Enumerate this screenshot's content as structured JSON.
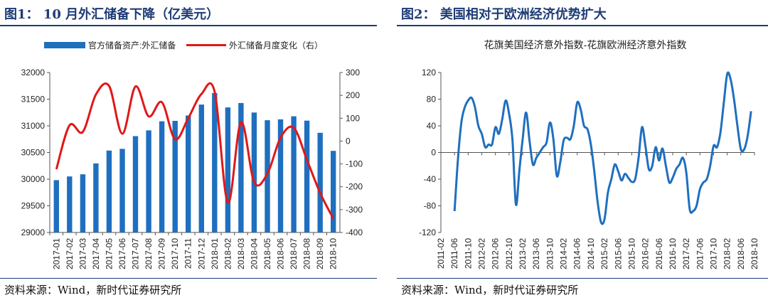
{
  "figure1": {
    "title": "图1：  10 月外汇储备下降（亿美元）",
    "source": "资料来源：Wind，新时代证券研究所",
    "chart_data": {
      "type": "bar+line",
      "categories": [
        "2017-01",
        "2017-02",
        "2017-03",
        "2017-04",
        "2017-05",
        "2017-06",
        "2017-07",
        "2017-08",
        "2017-09",
        "2017-10",
        "2017-11",
        "2017-12",
        "2018-01",
        "2018-02",
        "2018-03",
        "2018-04",
        "2018-05",
        "2018-06",
        "2018-07",
        "2018-08",
        "2018-09",
        "2018-10"
      ],
      "series": [
        {
          "name": "官方储备资产:外汇储备",
          "type": "bar",
          "axis": "left",
          "color": "#1f6fbf",
          "values": [
            29982,
            30051,
            30091,
            30295,
            30536,
            30568,
            30807,
            30915,
            31085,
            31093,
            31193,
            31399,
            31615,
            31345,
            31428,
            31249,
            31106,
            31121,
            31179,
            31097,
            30870,
            30531
          ]
        },
        {
          "name": "外汇储备月度变化（右）",
          "type": "line",
          "axis": "right",
          "color": "#e01818",
          "values": [
            -123,
            69,
            40,
            204,
            241,
            32,
            239,
            108,
            170,
            8,
            100,
            206,
            216,
            -270,
            83,
            -180,
            -143,
            15,
            58,
            -82,
            -227,
            -339
          ]
        }
      ],
      "ylim_left": [
        29000,
        32000
      ],
      "yticks_left": [
        29000,
        29500,
        30000,
        30500,
        31000,
        31500,
        32000
      ],
      "ylim_right": [
        -400,
        300
      ],
      "yticks_right": [
        -400,
        -300,
        -200,
        -100,
        0,
        100,
        200,
        300
      ],
      "legend_position": "top",
      "grid": false
    }
  },
  "figure2": {
    "title": "图2：  美国相对于欧洲经济优势扩大",
    "source": "资料来源：Wind，新时代证券研究所",
    "chart_data": {
      "type": "line",
      "title": "花旗美国经济意外指数-花旗欧洲经济意外指数",
      "xticks": [
        "2011-02",
        "2011-06",
        "2011-10",
        "2012-02",
        "2012-06",
        "2012-10",
        "2013-02",
        "2013-06",
        "2013-10",
        "2014-02",
        "2014-06",
        "2014-10",
        "2015-02",
        "2015-06",
        "2015-10",
        "2016-02",
        "2016-06",
        "2016-10",
        "2017-02",
        "2017-06",
        "2017-10",
        "2018-02",
        "2018-06",
        "2018-10"
      ],
      "ylim": [
        -120,
        120
      ],
      "yticks": [
        -120,
        -80,
        -40,
        0,
        40,
        80,
        120
      ],
      "series": [
        {
          "color": "#1f6fbf",
          "points": [
            [
              "2011-06",
              -88
            ],
            [
              "2011-07",
              -10
            ],
            [
              "2011-08",
              45
            ],
            [
              "2011-09",
              68
            ],
            [
              "2011-10",
              78
            ],
            [
              "2011-11",
              82
            ],
            [
              "2011-12",
              68
            ],
            [
              "2012-01",
              40
            ],
            [
              "2012-02",
              28
            ],
            [
              "2012-03",
              8
            ],
            [
              "2012-04",
              12
            ],
            [
              "2012-05",
              12
            ],
            [
              "2012-06",
              38
            ],
            [
              "2012-07",
              28
            ],
            [
              "2012-08",
              50
            ],
            [
              "2012-09",
              78
            ],
            [
              "2012-10",
              58
            ],
            [
              "2012-11",
              18
            ],
            [
              "2012-12",
              -78
            ],
            [
              "2013-01",
              -28
            ],
            [
              "2013-02",
              20
            ],
            [
              "2013-03",
              60
            ],
            [
              "2013-04",
              18
            ],
            [
              "2013-05",
              -18
            ],
            [
              "2013-06",
              -8
            ],
            [
              "2013-07",
              0
            ],
            [
              "2013-08",
              8
            ],
            [
              "2013-09",
              15
            ],
            [
              "2013-10",
              45
            ],
            [
              "2013-11",
              20
            ],
            [
              "2013-12",
              -35
            ],
            [
              "2014-01",
              -15
            ],
            [
              "2014-02",
              18
            ],
            [
              "2014-03",
              22
            ],
            [
              "2014-04",
              20
            ],
            [
              "2014-05",
              40
            ],
            [
              "2014-06",
              75
            ],
            [
              "2014-07",
              65
            ],
            [
              "2014-08",
              40
            ],
            [
              "2014-09",
              35
            ],
            [
              "2014-10",
              12
            ],
            [
              "2014-11",
              -28
            ],
            [
              "2014-12",
              -75
            ],
            [
              "2015-01",
              -105
            ],
            [
              "2015-02",
              -100
            ],
            [
              "2015-03",
              -60
            ],
            [
              "2015-04",
              -40
            ],
            [
              "2015-05",
              -18
            ],
            [
              "2015-06",
              -28
            ],
            [
              "2015-07",
              -42
            ],
            [
              "2015-08",
              -32
            ],
            [
              "2015-09",
              -38
            ],
            [
              "2015-10",
              -44
            ],
            [
              "2015-11",
              -40
            ],
            [
              "2015-12",
              -8
            ],
            [
              "2016-01",
              38
            ],
            [
              "2016-02",
              10
            ],
            [
              "2016-03",
              -25
            ],
            [
              "2016-04",
              -20
            ],
            [
              "2016-05",
              8
            ],
            [
              "2016-06",
              -12
            ],
            [
              "2016-07",
              6
            ],
            [
              "2016-08",
              -20
            ],
            [
              "2016-09",
              -45
            ],
            [
              "2016-10",
              -38
            ],
            [
              "2016-11",
              -25
            ],
            [
              "2016-12",
              -18
            ],
            [
              "2017-01",
              -8
            ],
            [
              "2017-02",
              -30
            ],
            [
              "2017-03",
              -85
            ],
            [
              "2017-04",
              -88
            ],
            [
              "2017-05",
              -80
            ],
            [
              "2017-06",
              -55
            ],
            [
              "2017-07",
              -45
            ],
            [
              "2017-08",
              -40
            ],
            [
              "2017-09",
              -20
            ],
            [
              "2017-10",
              10
            ],
            [
              "2017-11",
              8
            ],
            [
              "2017-12",
              30
            ],
            [
              "2018-01",
              75
            ],
            [
              "2018-02",
              118
            ],
            [
              "2018-03",
              110
            ],
            [
              "2018-04",
              80
            ],
            [
              "2018-05",
              40
            ],
            [
              "2018-06",
              5
            ],
            [
              "2018-07",
              5
            ],
            [
              "2018-08",
              25
            ],
            [
              "2018-09",
              62
            ]
          ]
        }
      ],
      "grid": false
    }
  }
}
